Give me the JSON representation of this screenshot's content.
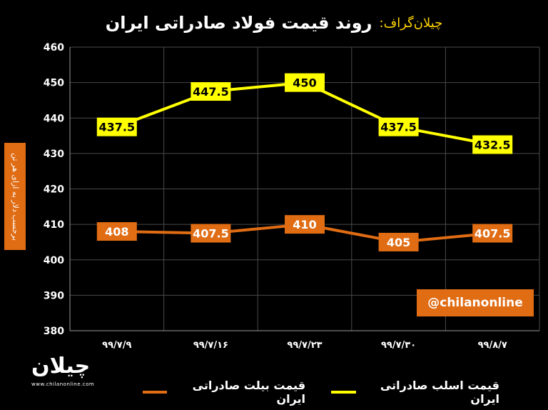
{
  "header": {
    "brand": "چیلان‌گراف:",
    "title": "روند قیمت فولاد صادراتی ایران"
  },
  "watermark": "@chilanonline",
  "logo": {
    "mark": "چیلان",
    "url": "www.chilanonline.com"
  },
  "chart_data": {
    "type": "line",
    "ylabel": "برحسب دلار به ازای هر تن",
    "ylim": [
      380,
      460
    ],
    "yticks": [
      380,
      390,
      400,
      410,
      420,
      430,
      440,
      450,
      460
    ],
    "ytick_labels": [
      "380",
      "390",
      "400",
      "410",
      "420",
      "430",
      "440",
      "450",
      "460"
    ],
    "categories": [
      "۹۹/۷/۹",
      "۹۹/۷/۱۶",
      "۹۹/۷/۲۳",
      "۹۹/۷/۳۰",
      "۹۹/۸/۷"
    ],
    "grid": true,
    "legend_position": "bottom",
    "series": [
      {
        "name": "قیمت اسلب صادراتی ایران",
        "color": "#ffff00",
        "values": [
          437.5,
          447.5,
          450,
          437.5,
          432.5
        ],
        "labels": [
          "437.5",
          "447.5",
          "450",
          "437.5",
          "432.5"
        ]
      },
      {
        "name": "قیمت بیلت صادراتی ایران",
        "color": "#e06c14",
        "values": [
          408,
          407.5,
          410,
          405,
          407.5
        ],
        "labels": [
          "408",
          "407.5",
          "410",
          "405",
          "407.5"
        ]
      }
    ]
  }
}
